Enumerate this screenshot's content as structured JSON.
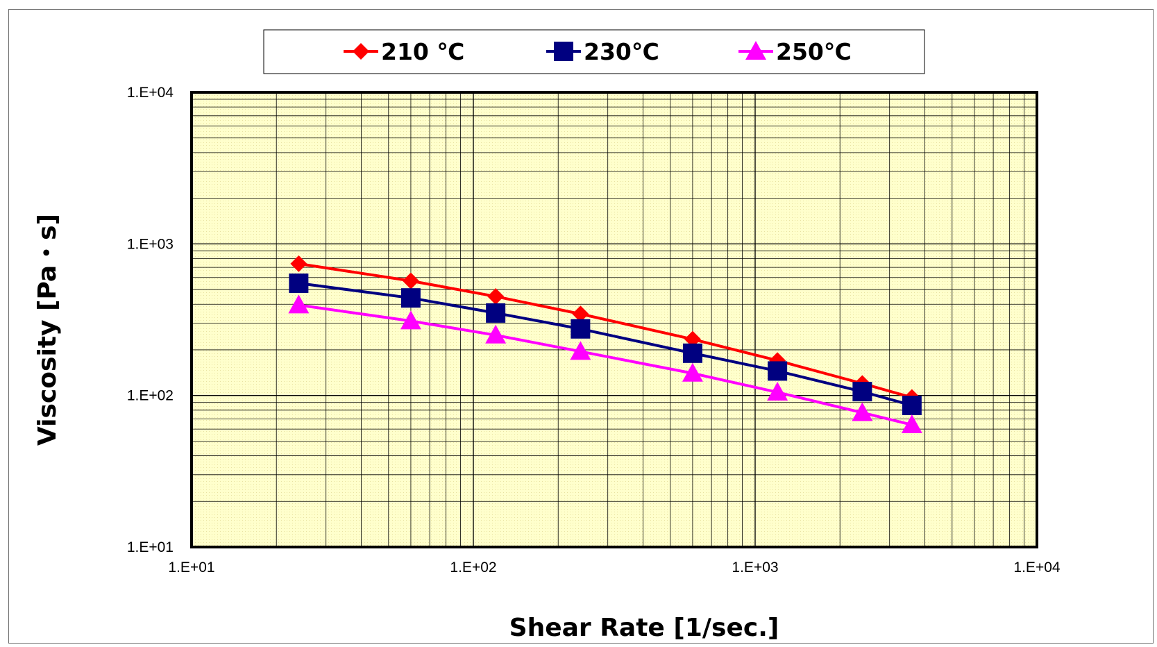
{
  "chart_data": {
    "type": "line",
    "title": "",
    "xlabel": "Shear Rate [1/sec.]",
    "ylabel": "Viscosity [Pa・s]",
    "x_scale": "log",
    "y_scale": "log",
    "xlim": [
      10,
      10000
    ],
    "ylim": [
      10,
      10000
    ],
    "x_ticks": [
      10,
      100,
      1000,
      10000
    ],
    "x_tick_labels": [
      "1.E+01",
      "1.E+02",
      "1.E+03",
      "1.E+04"
    ],
    "y_ticks": [
      10,
      100,
      1000,
      10000
    ],
    "y_tick_labels": [
      "1.E+01",
      "1.E+02",
      "1.E+03",
      "1.E+04"
    ],
    "grid": true,
    "legend_position": "top-center",
    "plot_background": "#ffffcc",
    "x": [
      24,
      60,
      120,
      240,
      600,
      1200,
      2400,
      3600
    ],
    "series": [
      {
        "name": "210 ℃",
        "color": "#ff0000",
        "marker": "diamond",
        "values": [
          740,
          570,
          450,
          345,
          235,
          170,
          120,
          97
        ]
      },
      {
        "name": "230℃",
        "color": "#000080",
        "marker": "square",
        "values": [
          550,
          440,
          350,
          275,
          190,
          145,
          106,
          86
        ]
      },
      {
        "name": "250℃",
        "color": "#ff00ff",
        "marker": "triangle",
        "values": [
          395,
          310,
          250,
          195,
          140,
          105,
          77,
          64
        ]
      }
    ]
  }
}
